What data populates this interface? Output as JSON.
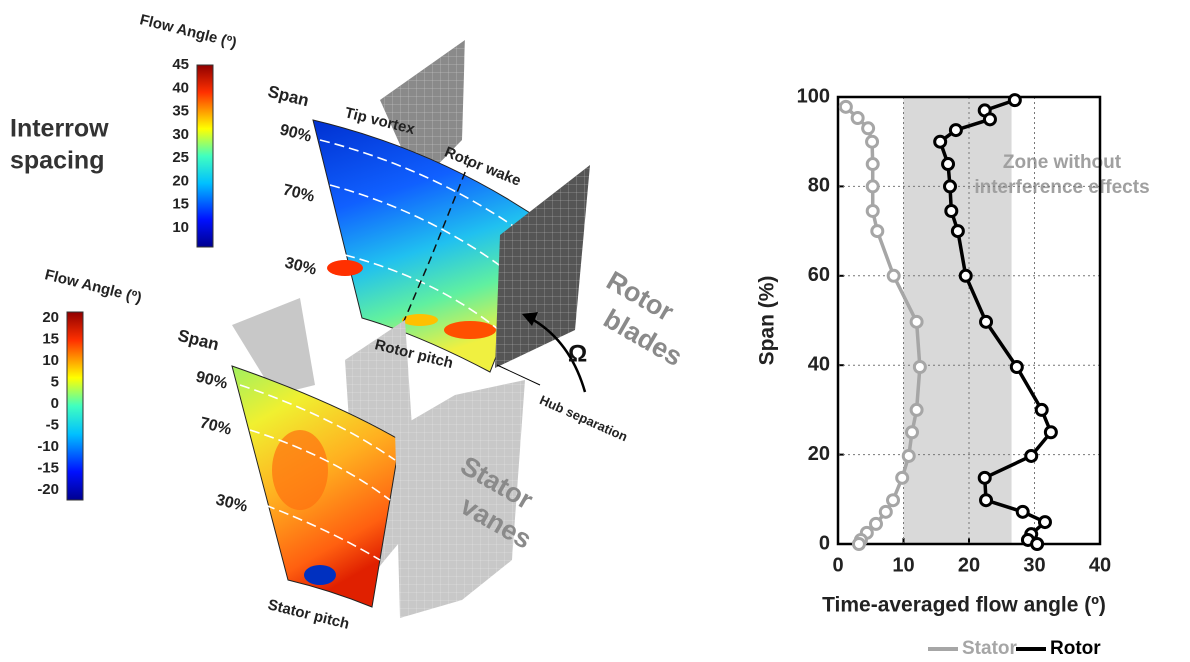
{
  "illustration": {
    "spacing_label": [
      "Interrow",
      "spacing"
    ],
    "rotor_panel": {
      "colorbar": {
        "title": "Flow Angle (º)",
        "ticks": [
          45,
          40,
          35,
          30,
          25,
          20,
          15,
          10
        ]
      },
      "span_label": "Span",
      "span_marks": [
        "90%",
        "70%",
        "30%"
      ],
      "annotations": [
        "Tip vortex",
        "Rotor wake",
        "Rotor pitch",
        "Hub separation"
      ],
      "blade_label": [
        "Rotor",
        "blades"
      ],
      "omega": "Ω"
    },
    "stator_panel": {
      "colorbar": {
        "title": "Flow Angle (º)",
        "ticks": [
          20,
          15,
          10,
          5,
          0,
          -5,
          -10,
          -15,
          -20
        ]
      },
      "span_label": "Span",
      "span_marks": [
        "90%",
        "70%",
        "30%"
      ],
      "annotations": [
        "Stator pitch"
      ],
      "blade_label": [
        "Stator",
        "vanes"
      ]
    }
  },
  "chart_data": {
    "type": "line",
    "xlabel": "Time-averaged flow angle (º)",
    "ylabel": "Span (%)",
    "xlim": [
      0,
      40
    ],
    "ylim": [
      0,
      100
    ],
    "xticks": [
      0,
      10,
      20,
      30,
      40
    ],
    "yticks": [
      0,
      20,
      40,
      60,
      80,
      100
    ],
    "grid": true,
    "zone": {
      "xrange": [
        10,
        26.5
      ],
      "label": [
        "Zone without",
        "interference effects"
      ]
    },
    "series": [
      {
        "name": "Stator",
        "color": "#a6a6a6",
        "x": [
          1.2,
          3,
          4.6,
          5.2,
          5.3,
          5.3,
          5.3,
          6,
          8.5,
          12,
          12.5,
          12,
          11.3,
          10.8,
          9.8,
          8.4,
          7.3,
          5.8,
          4.4,
          3.5,
          3.2
        ],
        "values": [
          97.8,
          95.3,
          93,
          90,
          85,
          80,
          74.5,
          70,
          60,
          49.7,
          39.6,
          30,
          25,
          19.7,
          14.8,
          9.8,
          7.2,
          4.5,
          2.5,
          0.9,
          0
        ]
      },
      {
        "name": "Rotor",
        "color": "#000000",
        "x": [
          27,
          22.4,
          23.2,
          18,
          15.6,
          16.8,
          17.1,
          17.3,
          18.3,
          19.5,
          22.6,
          27.3,
          31.1,
          32.5,
          29.5,
          22.4,
          22.6,
          28.2,
          31.6,
          29.5,
          29,
          30.4
        ],
        "values": [
          99.3,
          97,
          95,
          92.6,
          90,
          85,
          80,
          74.5,
          70,
          60,
          49.7,
          39.6,
          30,
          25,
          19.7,
          14.8,
          9.8,
          7.2,
          4.9,
          2.2,
          0.9,
          0
        ]
      }
    ]
  }
}
